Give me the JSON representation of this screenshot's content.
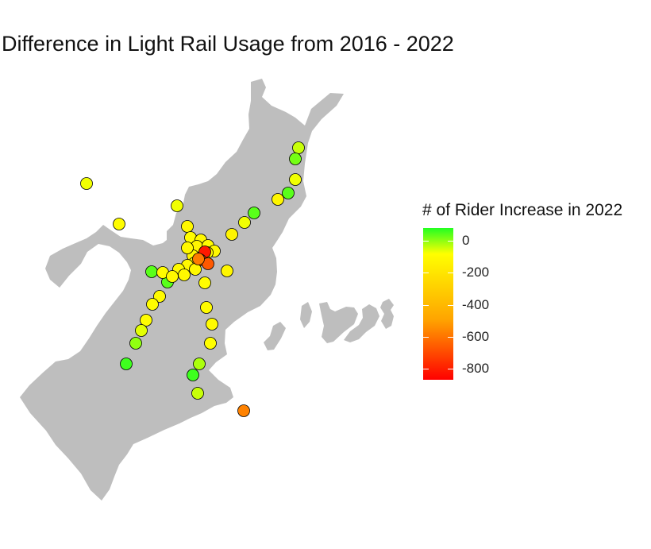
{
  "title": "Difference in Light Rail Usage from 2016 - 2022",
  "legend": {
    "title": "# of Rider Increase in 2022",
    "ticks": [
      {
        "value": 0,
        "label": "0"
      },
      {
        "value": -200,
        "label": "-200"
      },
      {
        "value": -400,
        "label": "-400"
      },
      {
        "value": -600,
        "label": "-600"
      },
      {
        "value": -800,
        "label": "-800"
      }
    ],
    "min": -870,
    "max": 80,
    "colors": {
      "high": "#22ff22",
      "zero": "#ffff00",
      "mid": "#ffa500",
      "low": "#ff0000"
    }
  },
  "map": {
    "land_color": "#bebebe",
    "point_stroke": "#000000",
    "stations": [
      {
        "value": 20
      },
      {
        "value": 50
      },
      {
        "value": 5
      },
      {
        "value": 60
      },
      {
        "value": -40
      },
      {
        "value": 60
      },
      {
        "value": 5
      },
      {
        "value": -50
      },
      {
        "value": 5
      },
      {
        "value": -10
      },
      {
        "value": 5
      },
      {
        "value": -30
      },
      {
        "value": -10
      },
      {
        "value": -30
      },
      {
        "value": -50
      },
      {
        "value": -20
      },
      {
        "value": -30
      },
      {
        "value": -20
      },
      {
        "value": -40
      },
      {
        "value": -10
      },
      {
        "value": -30
      },
      {
        "value": -30
      },
      {
        "value": -20
      },
      {
        "value": -30
      },
      {
        "value": -800
      },
      {
        "value": -560
      },
      {
        "value": -620
      },
      {
        "value": -40
      },
      {
        "value": -10
      },
      {
        "value": 60
      },
      {
        "value": 60
      },
      {
        "value": -20
      },
      {
        "value": -30
      },
      {
        "value": -20
      },
      {
        "value": -10
      },
      {
        "value": -10
      },
      {
        "value": 10
      },
      {
        "value": 40
      },
      {
        "value": 70
      },
      {
        "value": -20
      },
      {
        "value": -20
      },
      {
        "value": -5
      },
      {
        "value": 30
      },
      {
        "value": 70
      },
      {
        "value": 20
      },
      {
        "value": -500
      },
      {
        "value": -30
      },
      {
        "value": -30
      },
      {
        "value": -520
      }
    ]
  }
}
